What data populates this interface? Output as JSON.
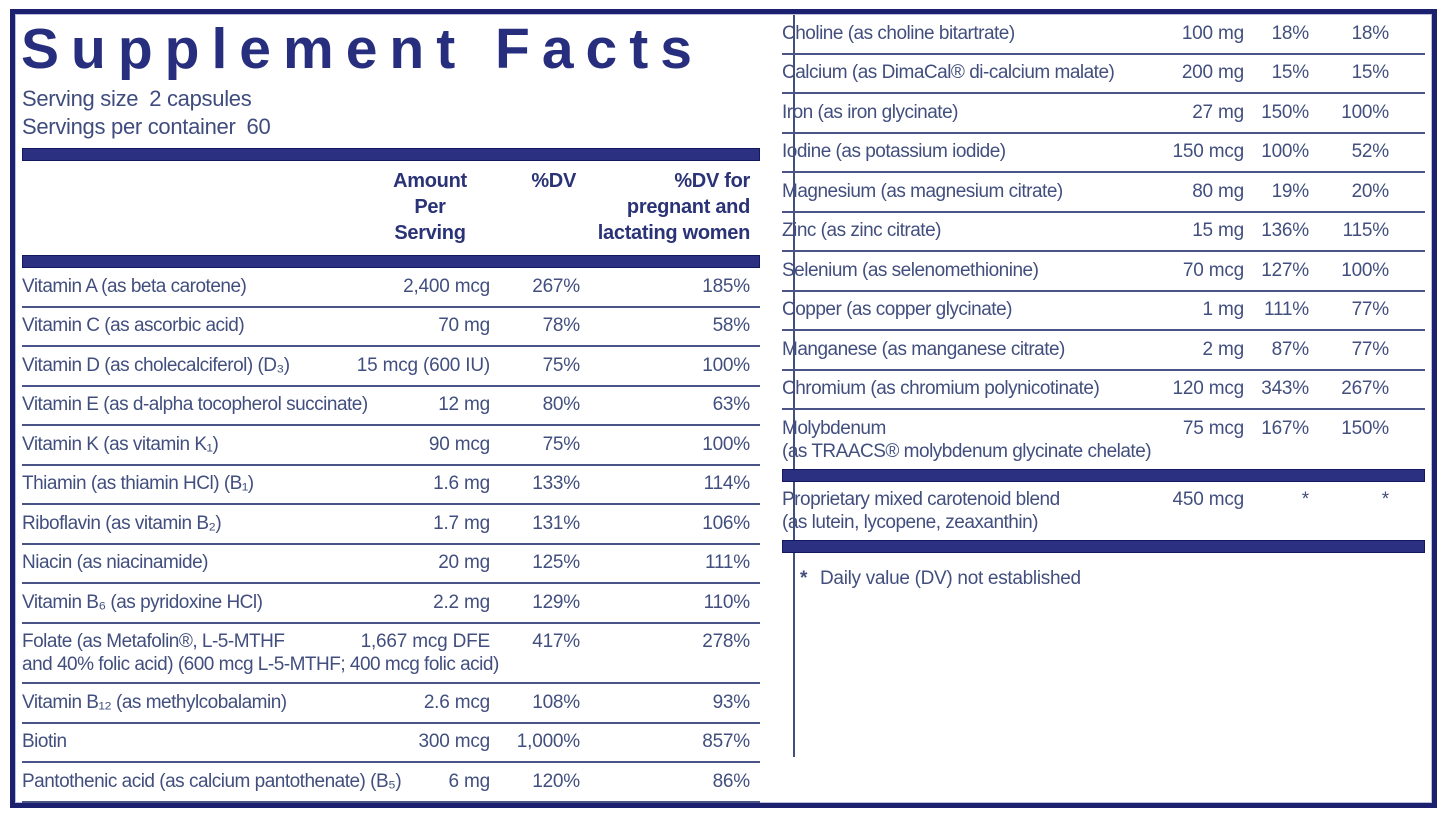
{
  "colors": {
    "navy": "#2b3180",
    "text": "#424f7e",
    "frame": "#1b216e"
  },
  "header": {
    "title": "Supplement Facts",
    "serving_size_label": "Serving size",
    "serving_size_value": "2 capsules",
    "servings_label": "Servings per container",
    "servings_value": "60"
  },
  "table_headers": {
    "amount_line1": "Amount",
    "amount_line2": "Per",
    "amount_line3": "Serving",
    "dv": "%DV",
    "pregnant_line1": "%DV for",
    "pregnant_line2": "pregnant and",
    "pregnant_line3": "lactating women"
  },
  "left_table": {
    "rows": [
      {
        "name": "Vitamin A (as beta carotene)",
        "amount": "2,400 mcg",
        "dv": "267%",
        "pdv": "185%"
      },
      {
        "name": "Vitamin C (as ascorbic acid)",
        "amount": "70 mg",
        "dv": "78%",
        "pdv": "58%"
      },
      {
        "name": "Vitamin D (as cholecalciferol) (D₃)",
        "amount": "15 mcg (600 IU)",
        "dv": "75%",
        "pdv": "100%"
      },
      {
        "name": "Vitamin E (as d-alpha tocopherol succinate)",
        "amount": "12 mg",
        "dv": "80%",
        "pdv": "63%"
      },
      {
        "name": "Vitamin K (as vitamin K₁)",
        "amount": "90 mcg",
        "dv": "75%",
        "pdv": "100%"
      },
      {
        "name": "Thiamin (as thiamin HCl) (B₁)",
        "amount": "1.6 mg",
        "dv": "133%",
        "pdv": "114%"
      },
      {
        "name": "Riboflavin (as vitamin B₂)",
        "amount": "1.7 mg",
        "dv": "131%",
        "pdv": "106%"
      },
      {
        "name": "Niacin (as niacinamide)",
        "amount": "20 mg",
        "dv": "125%",
        "pdv": "111%"
      },
      {
        "name": "Vitamin B₆ (as pyridoxine HCl)",
        "amount": "2.2 mg",
        "dv": "129%",
        "pdv": "110%"
      },
      {
        "name": "Folate (as Metafolin®, L-5-MTHF",
        "name2": "and 40% folic acid) (600 mcg L-5-MTHF; 400 mcg folic acid)",
        "amount": "1,667 mcg DFE",
        "dv": "417%",
        "pdv": "278%"
      },
      {
        "name": "Vitamin B₁₂ (as methylcobalamin)",
        "amount": "2.6 mcg",
        "dv": "108%",
        "pdv": "93%"
      },
      {
        "name": "Biotin",
        "amount": "300 mcg",
        "dv": "1,000%",
        "pdv": "857%"
      },
      {
        "name": "Pantothenic acid (as calcium pantothenate) (B₅)",
        "amount": "6 mg",
        "dv": "120%",
        "pdv": "86%"
      }
    ]
  },
  "right_table": {
    "rows": [
      {
        "name": "Choline (as choline bitartrate)",
        "amount": "100 mg",
        "dv": "18%",
        "pdv": "18%"
      },
      {
        "name": "Calcium (as DimaCal® di-calcium malate)",
        "amount": "200 mg",
        "dv": "15%",
        "pdv": "15%"
      },
      {
        "name": "Iron (as iron glycinate)",
        "amount": "27 mg",
        "dv": "150%",
        "pdv": "100%"
      },
      {
        "name": "Iodine (as potassium iodide)",
        "amount": "150 mcg",
        "dv": "100%",
        "pdv": "52%"
      },
      {
        "name": "Magnesium (as magnesium citrate)",
        "amount": "80 mg",
        "dv": "19%",
        "pdv": "20%"
      },
      {
        "name": "Zinc (as zinc citrate)",
        "amount": "15 mg",
        "dv": "136%",
        "pdv": "115%"
      },
      {
        "name": "Selenium (as selenomethionine)",
        "amount": "70 mcg",
        "dv": "127%",
        "pdv": "100%"
      },
      {
        "name": "Copper (as copper glycinate)",
        "amount": "1 mg",
        "dv": "111%",
        "pdv": "77%"
      },
      {
        "name": "Manganese (as manganese citrate)",
        "amount": "2 mg",
        "dv": "87%",
        "pdv": "77%"
      },
      {
        "name": "Chromium (as chromium polynicotinate)",
        "amount": "120 mcg",
        "dv": "343%",
        "pdv": "267%"
      },
      {
        "name": "Molybdenum",
        "name2": "(as TRAACS® molybdenum glycinate chelate)",
        "amount": "75 mcg",
        "dv": "167%",
        "pdv": "150%",
        "after_bar": true
      },
      {
        "name": "Proprietary mixed carotenoid blend",
        "name2": "(as lutein, lycopene, zeaxanthin)",
        "amount": "450 mcg",
        "dv": "*",
        "pdv": "*",
        "after_bar": true
      }
    ]
  },
  "footnote": {
    "marker": "*",
    "text": "Daily value (DV) not established"
  }
}
